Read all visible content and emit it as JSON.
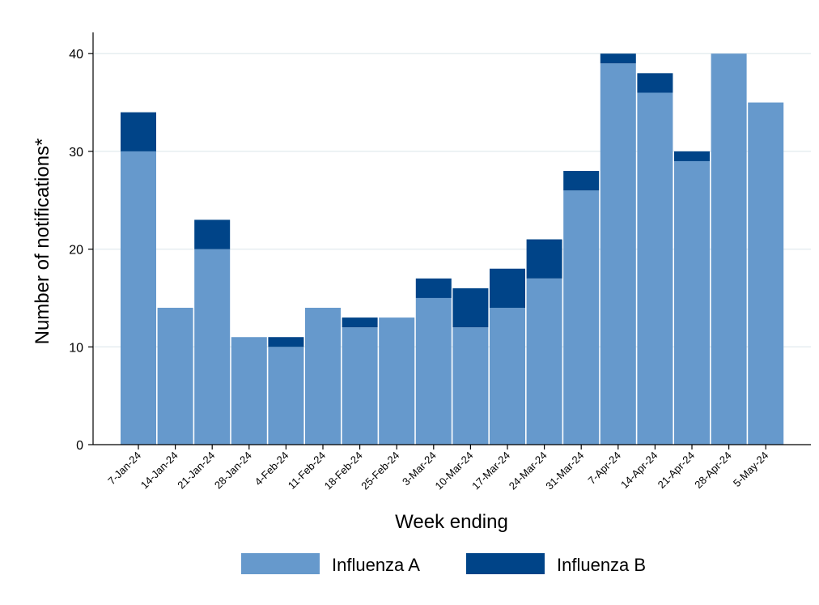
{
  "chart_data": {
    "type": "bar",
    "stacked": true,
    "title": "",
    "xlabel": "Week ending",
    "ylabel": "Number of notifications*",
    "ylim": [
      0,
      42
    ],
    "yticks": [
      0,
      10,
      20,
      30,
      40
    ],
    "grid": true,
    "legend_position": "bottom",
    "categories": [
      "7-Jan-24",
      "14-Jan-24",
      "21-Jan-24",
      "28-Jan-24",
      "4-Feb-24",
      "11-Feb-24",
      "18-Feb-24",
      "25-Feb-24",
      "3-Mar-24",
      "10-Mar-24",
      "17-Mar-24",
      "24-Mar-24",
      "31-Mar-24",
      "7-Apr-24",
      "14-Apr-24",
      "21-Apr-24",
      "28-Apr-24",
      "5-May-24"
    ],
    "series": [
      {
        "name": "Influenza A",
        "color": "#6699cc",
        "values": [
          30,
          14,
          20,
          11,
          10,
          14,
          12,
          13,
          15,
          12,
          14,
          17,
          26,
          39,
          36,
          29,
          40,
          35
        ]
      },
      {
        "name": "Influenza B",
        "color": "#004488",
        "values": [
          4,
          0,
          3,
          0,
          1,
          0,
          1,
          0,
          2,
          4,
          4,
          4,
          2,
          1,
          2,
          1,
          0,
          0
        ]
      }
    ]
  }
}
